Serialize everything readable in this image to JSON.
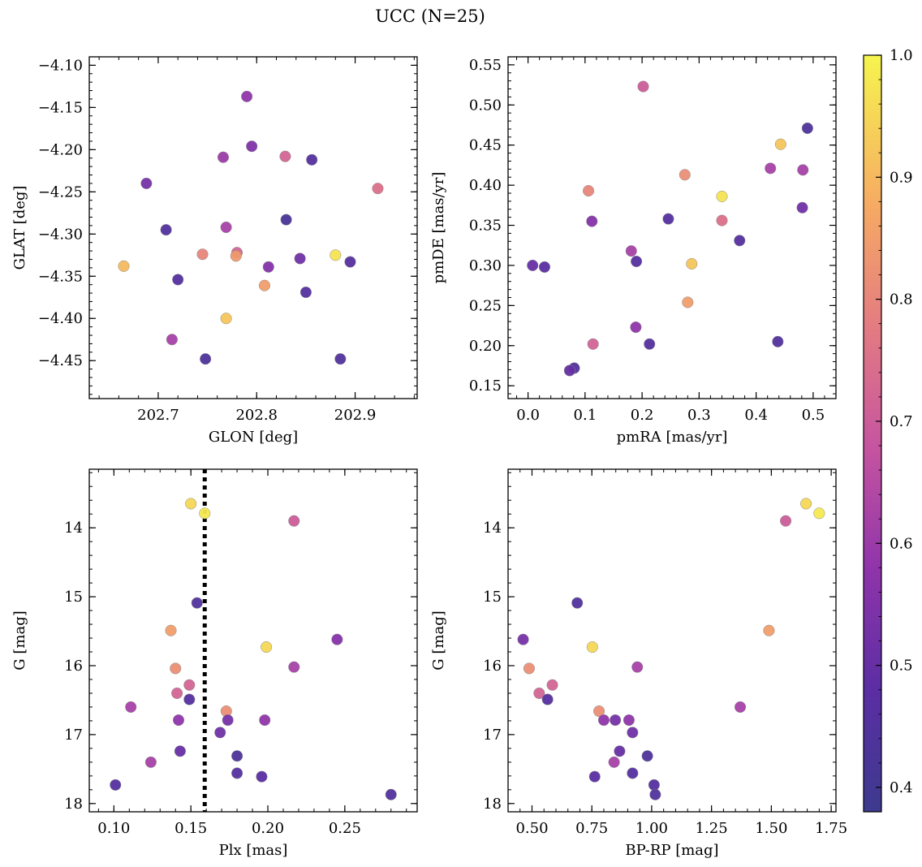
{
  "figure": {
    "title": "UCC (N=25)",
    "colorbar": {
      "colormap": "plasma",
      "range": [
        0.38,
        1.0
      ],
      "ticks": [
        0.4,
        0.5,
        0.6,
        0.7,
        0.8,
        0.9,
        1.0
      ],
      "tick_labels": [
        "0.4",
        "0.5",
        "0.6",
        "0.7",
        "0.8",
        "0.9",
        "1.0"
      ]
    }
  },
  "chart_data": [
    {
      "type": "scatter",
      "xlabel": "GLON [deg]",
      "ylabel": "GLAT [deg]",
      "xlim": [
        202.63,
        202.963
      ],
      "ylim": [
        -4.495,
        -4.09
      ],
      "y_inverted": false,
      "xticks": [
        202.7,
        202.8,
        202.9
      ],
      "xtick_labels": [
        "202.7",
        "202.8",
        "202.9"
      ],
      "yticks": [
        -4.1,
        -4.15,
        -4.2,
        -4.25,
        -4.3,
        -4.35,
        -4.4,
        -4.45
      ],
      "ytick_labels": [
        "−4.10",
        "−4.15",
        "−4.20",
        "−4.25",
        "−4.30",
        "−4.35",
        "−4.40",
        "−4.45"
      ],
      "points": [
        {
          "x": 202.79,
          "y": -4.137,
          "c": 0.58
        },
        {
          "x": 202.795,
          "y": -4.196,
          "c": 0.55
        },
        {
          "x": 202.766,
          "y": -4.209,
          "c": 0.6
        },
        {
          "x": 202.829,
          "y": -4.208,
          "c": 0.72
        },
        {
          "x": 202.856,
          "y": -4.212,
          "c": 0.46
        },
        {
          "x": 202.688,
          "y": -4.24,
          "c": 0.53
        },
        {
          "x": 202.923,
          "y": -4.246,
          "c": 0.75
        },
        {
          "x": 202.83,
          "y": -4.283,
          "c": 0.42
        },
        {
          "x": 202.769,
          "y": -4.292,
          "c": 0.62
        },
        {
          "x": 202.708,
          "y": -4.295,
          "c": 0.45
        },
        {
          "x": 202.78,
          "y": -4.322,
          "c": 0.72
        },
        {
          "x": 202.745,
          "y": -4.324,
          "c": 0.8
        },
        {
          "x": 202.779,
          "y": -4.326,
          "c": 0.84
        },
        {
          "x": 202.88,
          "y": -4.325,
          "c": 0.97
        },
        {
          "x": 202.844,
          "y": -4.329,
          "c": 0.52
        },
        {
          "x": 202.895,
          "y": -4.333,
          "c": 0.46
        },
        {
          "x": 202.665,
          "y": -4.338,
          "c": 0.9
        },
        {
          "x": 202.812,
          "y": -4.339,
          "c": 0.56
        },
        {
          "x": 202.72,
          "y": -4.354,
          "c": 0.46
        },
        {
          "x": 202.808,
          "y": -4.361,
          "c": 0.85
        },
        {
          "x": 202.85,
          "y": -4.369,
          "c": 0.46
        },
        {
          "x": 202.769,
          "y": -4.4,
          "c": 0.92
        },
        {
          "x": 202.714,
          "y": -4.425,
          "c": 0.62
        },
        {
          "x": 202.748,
          "y": -4.448,
          "c": 0.44
        },
        {
          "x": 202.885,
          "y": -4.448,
          "c": 0.45
        }
      ]
    },
    {
      "type": "scatter",
      "xlabel": "pmRA [mas/yr]",
      "ylabel": "pmDE [mas/yr]",
      "xlim": [
        -0.035,
        0.54
      ],
      "ylim": [
        0.134,
        0.56
      ],
      "y_inverted": false,
      "xticks": [
        0.0,
        0.1,
        0.2,
        0.3,
        0.4,
        0.5
      ],
      "xtick_labels": [
        "0.0",
        "0.1",
        "0.2",
        "0.3",
        "0.4",
        "0.5"
      ],
      "yticks": [
        0.15,
        0.2,
        0.25,
        0.3,
        0.35,
        0.4,
        0.45,
        0.5,
        0.55
      ],
      "ytick_labels": [
        "0.15",
        "0.20",
        "0.25",
        "0.30",
        "0.35",
        "0.40",
        "0.45",
        "0.50",
        "0.55"
      ],
      "points": [
        {
          "x": 0.202,
          "y": 0.523,
          "c": 0.7
        },
        {
          "x": 0.49,
          "y": 0.471,
          "c": 0.44
        },
        {
          "x": 0.443,
          "y": 0.451,
          "c": 0.92
        },
        {
          "x": 0.425,
          "y": 0.421,
          "c": 0.62
        },
        {
          "x": 0.482,
          "y": 0.419,
          "c": 0.62
        },
        {
          "x": 0.275,
          "y": 0.413,
          "c": 0.82
        },
        {
          "x": 0.106,
          "y": 0.393,
          "c": 0.8
        },
        {
          "x": 0.34,
          "y": 0.386,
          "c": 0.97
        },
        {
          "x": 0.481,
          "y": 0.372,
          "c": 0.52
        },
        {
          "x": 0.246,
          "y": 0.358,
          "c": 0.46
        },
        {
          "x": 0.34,
          "y": 0.356,
          "c": 0.75
        },
        {
          "x": 0.112,
          "y": 0.355,
          "c": 0.56
        },
        {
          "x": 0.371,
          "y": 0.331,
          "c": 0.46
        },
        {
          "x": 0.181,
          "y": 0.318,
          "c": 0.62
        },
        {
          "x": 0.19,
          "y": 0.305,
          "c": 0.46
        },
        {
          "x": 0.287,
          "y": 0.302,
          "c": 0.92
        },
        {
          "x": 0.008,
          "y": 0.3,
          "c": 0.5
        },
        {
          "x": 0.029,
          "y": 0.298,
          "c": 0.48
        },
        {
          "x": 0.28,
          "y": 0.254,
          "c": 0.85
        },
        {
          "x": 0.189,
          "y": 0.223,
          "c": 0.58
        },
        {
          "x": 0.438,
          "y": 0.205,
          "c": 0.45
        },
        {
          "x": 0.114,
          "y": 0.202,
          "c": 0.72
        },
        {
          "x": 0.213,
          "y": 0.202,
          "c": 0.46
        },
        {
          "x": 0.081,
          "y": 0.172,
          "c": 0.45
        },
        {
          "x": 0.073,
          "y": 0.169,
          "c": 0.5
        }
      ]
    },
    {
      "type": "scatter",
      "xlabel": "Plx [mas]",
      "ylabel": "G [mag]",
      "xlim": [
        0.084,
        0.297
      ],
      "ylim": [
        18.12,
        13.15
      ],
      "y_inverted": true,
      "vline": {
        "x": 0.159,
        "style": "dotted"
      },
      "xticks": [
        0.1,
        0.15,
        0.2,
        0.25
      ],
      "xtick_labels": [
        "0.10",
        "0.15",
        "0.20",
        "0.25"
      ],
      "yticks": [
        14,
        15,
        16,
        17,
        18
      ],
      "ytick_labels": [
        "14",
        "15",
        "16",
        "17",
        "18"
      ],
      "points": [
        {
          "x": 0.15,
          "y": 13.65,
          "c": 0.95
        },
        {
          "x": 0.159,
          "y": 13.79,
          "c": 0.98
        },
        {
          "x": 0.217,
          "y": 13.9,
          "c": 0.7
        },
        {
          "x": 0.154,
          "y": 15.09,
          "c": 0.45
        },
        {
          "x": 0.137,
          "y": 15.49,
          "c": 0.85
        },
        {
          "x": 0.245,
          "y": 15.62,
          "c": 0.56
        },
        {
          "x": 0.199,
          "y": 15.73,
          "c": 0.95
        },
        {
          "x": 0.14,
          "y": 16.04,
          "c": 0.82
        },
        {
          "x": 0.217,
          "y": 16.02,
          "c": 0.62
        },
        {
          "x": 0.149,
          "y": 16.28,
          "c": 0.72
        },
        {
          "x": 0.141,
          "y": 16.4,
          "c": 0.72
        },
        {
          "x": 0.149,
          "y": 16.49,
          "c": 0.46
        },
        {
          "x": 0.111,
          "y": 16.6,
          "c": 0.62
        },
        {
          "x": 0.173,
          "y": 16.66,
          "c": 0.82
        },
        {
          "x": 0.142,
          "y": 16.79,
          "c": 0.58
        },
        {
          "x": 0.174,
          "y": 16.79,
          "c": 0.53
        },
        {
          "x": 0.198,
          "y": 16.79,
          "c": 0.58
        },
        {
          "x": 0.169,
          "y": 16.97,
          "c": 0.52
        },
        {
          "x": 0.143,
          "y": 17.24,
          "c": 0.5
        },
        {
          "x": 0.18,
          "y": 17.31,
          "c": 0.44
        },
        {
          "x": 0.124,
          "y": 17.4,
          "c": 0.62
        },
        {
          "x": 0.18,
          "y": 17.56,
          "c": 0.46
        },
        {
          "x": 0.196,
          "y": 17.61,
          "c": 0.48
        },
        {
          "x": 0.101,
          "y": 17.73,
          "c": 0.46
        },
        {
          "x": 0.28,
          "y": 17.87,
          "c": 0.45
        }
      ]
    },
    {
      "type": "scatter",
      "xlabel": "BP-RP [mag]",
      "ylabel": "G [mag]",
      "xlim": [
        0.4,
        1.77
      ],
      "ylim": [
        18.12,
        13.15
      ],
      "y_inverted": true,
      "xticks": [
        0.5,
        0.75,
        1.0,
        1.25,
        1.5,
        1.75
      ],
      "xtick_labels": [
        "0.50",
        "0.75",
        "1.00",
        "1.25",
        "1.50",
        "1.75"
      ],
      "yticks": [
        14,
        15,
        16,
        17,
        18
      ],
      "ytick_labels": [
        "14",
        "15",
        "16",
        "17",
        "18"
      ],
      "points": [
        {
          "x": 1.645,
          "y": 13.65,
          "c": 0.95
        },
        {
          "x": 1.7,
          "y": 13.79,
          "c": 0.98
        },
        {
          "x": 1.56,
          "y": 13.9,
          "c": 0.7
        },
        {
          "x": 0.689,
          "y": 15.09,
          "c": 0.45
        },
        {
          "x": 1.49,
          "y": 15.49,
          "c": 0.85
        },
        {
          "x": 0.463,
          "y": 15.62,
          "c": 0.53
        },
        {
          "x": 0.752,
          "y": 15.73,
          "c": 0.95
        },
        {
          "x": 0.488,
          "y": 16.04,
          "c": 0.82
        },
        {
          "x": 0.94,
          "y": 16.02,
          "c": 0.62
        },
        {
          "x": 0.585,
          "y": 16.28,
          "c": 0.72
        },
        {
          "x": 0.53,
          "y": 16.4,
          "c": 0.72
        },
        {
          "x": 0.565,
          "y": 16.49,
          "c": 0.46
        },
        {
          "x": 1.37,
          "y": 16.6,
          "c": 0.62
        },
        {
          "x": 0.78,
          "y": 16.66,
          "c": 0.82
        },
        {
          "x": 0.8,
          "y": 16.79,
          "c": 0.58
        },
        {
          "x": 0.848,
          "y": 16.79,
          "c": 0.53
        },
        {
          "x": 0.905,
          "y": 16.79,
          "c": 0.58
        },
        {
          "x": 0.92,
          "y": 16.97,
          "c": 0.52
        },
        {
          "x": 0.866,
          "y": 17.24,
          "c": 0.5
        },
        {
          "x": 0.982,
          "y": 17.31,
          "c": 0.44
        },
        {
          "x": 0.843,
          "y": 17.4,
          "c": 0.62
        },
        {
          "x": 0.92,
          "y": 17.56,
          "c": 0.46
        },
        {
          "x": 0.762,
          "y": 17.61,
          "c": 0.48
        },
        {
          "x": 1.01,
          "y": 17.73,
          "c": 0.46
        },
        {
          "x": 1.015,
          "y": 17.87,
          "c": 0.45
        }
      ]
    }
  ]
}
